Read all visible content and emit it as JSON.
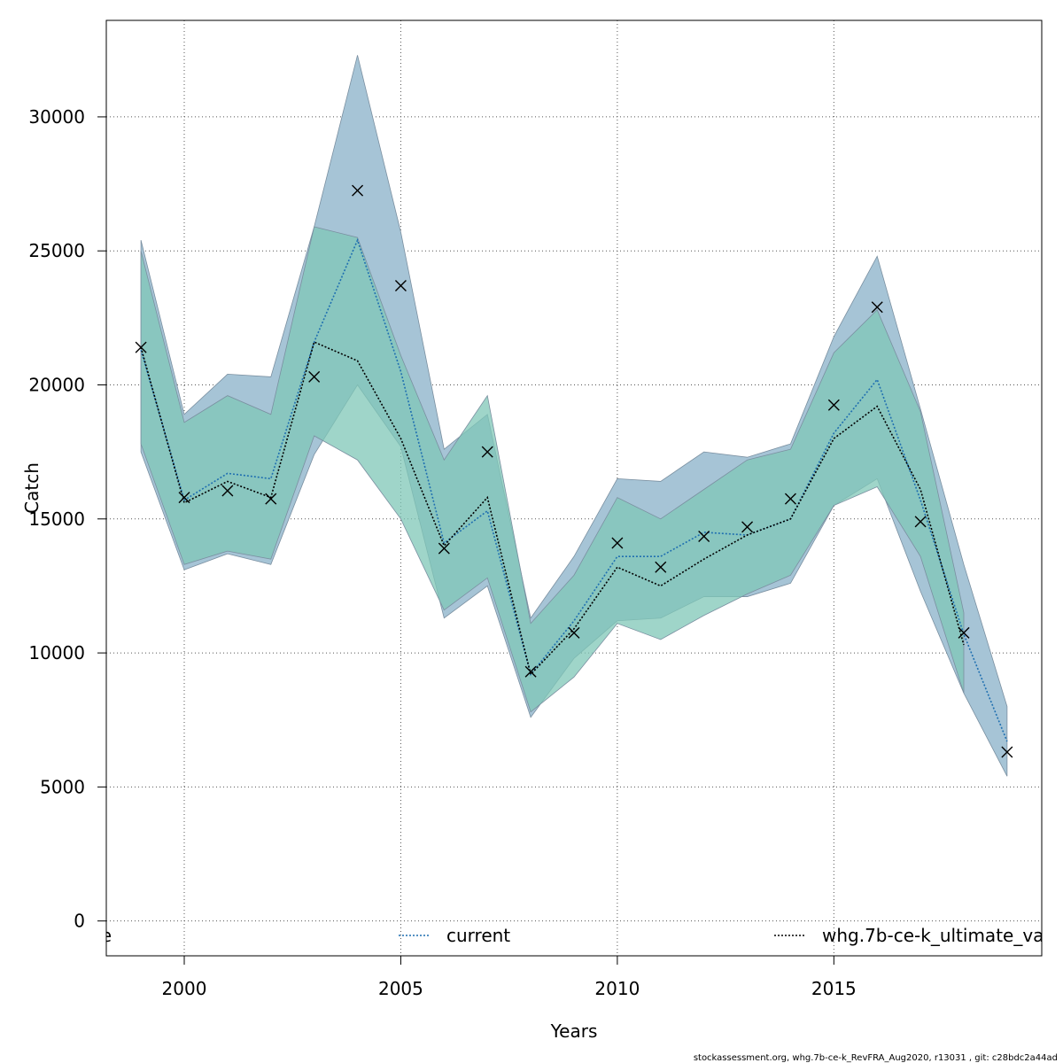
{
  "chart_data": {
    "type": "line",
    "xlabel": "Years",
    "ylabel": "Catch",
    "xlim": [
      1998.2,
      2019.8
    ],
    "ylim": [
      -1300,
      33600
    ],
    "grid": true,
    "x_ticks": [
      2000,
      2005,
      2010,
      2015
    ],
    "y_ticks": [
      0,
      5000,
      10000,
      15000,
      20000,
      25000,
      30000
    ],
    "legend_position": "bottom",
    "legend_items": [
      {
        "label": "e",
        "color": "#000000",
        "style": "none"
      },
      {
        "label": "current",
        "color": "#1f6fb0",
        "style": "dotted"
      },
      {
        "label": "whg.7b-ce-k_ultimate_va",
        "color": "#000000",
        "style": "dotted"
      }
    ],
    "series": [
      {
        "name": "current",
        "color": "#1f6fb0",
        "band_color": "#a6c4d6",
        "x": [
          1999,
          2000,
          2001,
          2002,
          2003,
          2004,
          2005,
          2006,
          2007,
          2008,
          2009,
          2010,
          2011,
          2012,
          2013,
          2014,
          2015,
          2016,
          2017,
          2018,
          2019
        ],
        "values": [
          21300,
          15700,
          16700,
          16500,
          21600,
          25400,
          20500,
          14100,
          15300,
          9200,
          11200,
          13600,
          13600,
          14500,
          14400,
          15000,
          18200,
          20200,
          15700,
          10700,
          6700
        ],
        "lower": [
          17500,
          13100,
          13700,
          13300,
          17400,
          20000,
          17700,
          11300,
          12500,
          7600,
          9800,
          11200,
          11300,
          12100,
          12100,
          12600,
          15500,
          16500,
          12300,
          8500,
          5400
        ],
        "upper": [
          25400,
          18900,
          20400,
          20300,
          25900,
          32300,
          25700,
          17600,
          18900,
          11300,
          13600,
          16500,
          16400,
          17500,
          17300,
          17800,
          21800,
          24800,
          19100,
          13300,
          8000
        ]
      },
      {
        "name": "whg.7b-ce-k_ultimate_va",
        "color": "#000000",
        "band_color": "#7fc7b7",
        "x": [
          1999,
          2000,
          2001,
          2002,
          2003,
          2004,
          2005,
          2006,
          2007,
          2008,
          2009,
          2010,
          2011,
          2012,
          2013,
          2014,
          2015,
          2016,
          2017,
          2018
        ],
        "values": [
          21400,
          15600,
          16400,
          15800,
          21600,
          20900,
          18000,
          14000,
          15800,
          9200,
          10900,
          13200,
          12500,
          13500,
          14400,
          15000,
          18000,
          19200,
          16100,
          10300
        ],
        "lower": [
          17800,
          13300,
          13800,
          13500,
          18100,
          17200,
          15000,
          11600,
          12800,
          7800,
          9100,
          11100,
          10500,
          11400,
          12200,
          12900,
          15500,
          16200,
          13600,
          8500
        ],
        "upper": [
          25000,
          18600,
          19600,
          18900,
          25900,
          25500,
          21100,
          17200,
          19600,
          11100,
          12900,
          15800,
          15000,
          16100,
          17200,
          17600,
          21200,
          22800,
          19000,
          11500
        ]
      }
    ],
    "observations": {
      "name": "observed",
      "marker": "x",
      "x": [
        1999,
        2000,
        2001,
        2002,
        2003,
        2004,
        2005,
        2006,
        2007,
        2008,
        2009,
        2010,
        2011,
        2012,
        2013,
        2014,
        2015,
        2016,
        2017,
        2018,
        2019
      ],
      "values": [
        21400,
        15800,
        16050,
        15750,
        20300,
        27250,
        23700,
        13900,
        17500,
        9300,
        10750,
        14100,
        13200,
        14350,
        14700,
        15750,
        19250,
        22900,
        14900,
        10750,
        6300
      ]
    }
  },
  "footer": "stockassessment.org, whg.7b-ce-k_RevFRA_Aug2020, r13031 , git: c28bdc2a44ad"
}
